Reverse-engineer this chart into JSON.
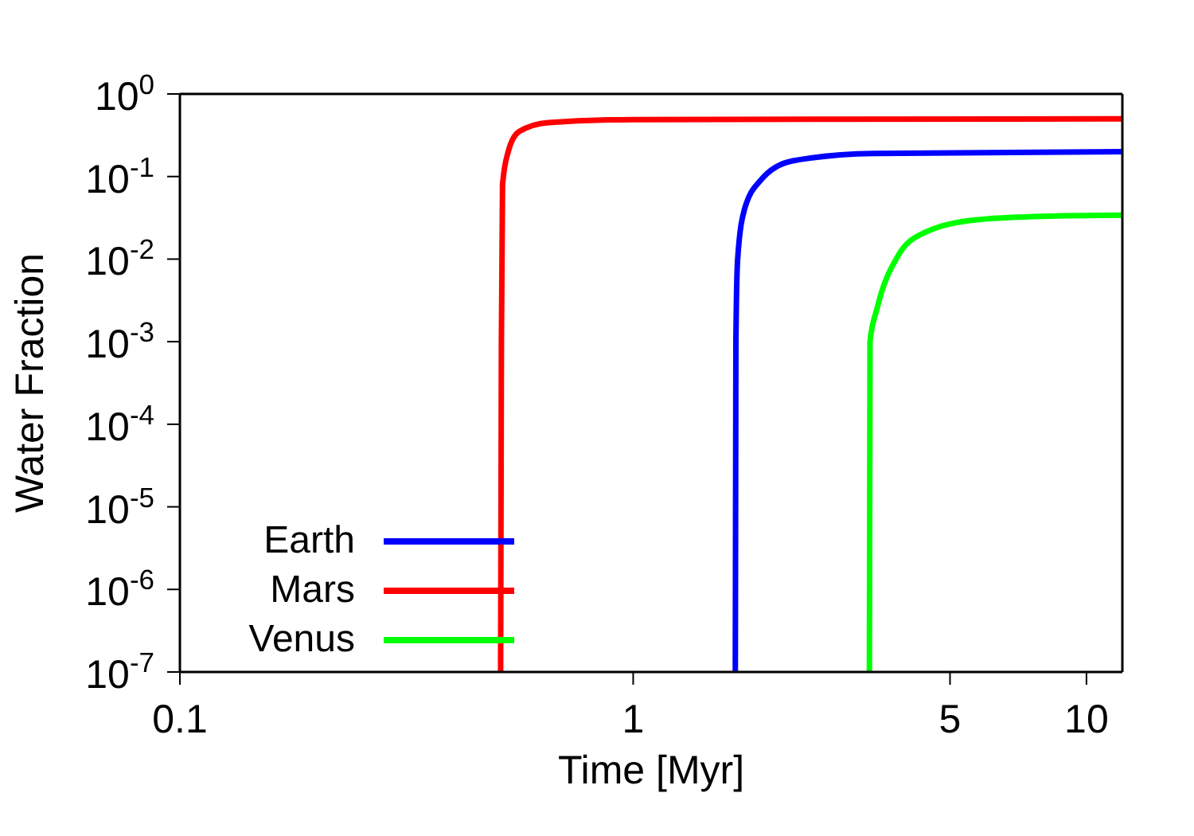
{
  "chart_data": {
    "type": "line",
    "xlabel": "Time [Myr]",
    "ylabel": "Water Fraction",
    "log": "xy",
    "xlim": [
      0.1,
      12
    ],
    "xticks": [
      0.1,
      1,
      5,
      10
    ],
    "ylim": [
      1e-07,
      1
    ],
    "yticks": [
      {
        "value": 1e-07,
        "label": "10$^{-7}$"
      },
      {
        "value": 1e-06,
        "label": "10$^{-6}$"
      },
      {
        "value": 1e-05,
        "label": "10$^{-5}$"
      },
      {
        "value": 0.0001,
        "label": "10$^{-4}$"
      },
      {
        "value": 0.001,
        "label": "10$^{-3}$"
      },
      {
        "value": 0.01,
        "label": "10$^{-2}$"
      },
      {
        "value": 0.1,
        "label": "10$^{-1}$"
      },
      {
        "value": 1,
        "label": "10$^{0}$"
      }
    ],
    "legend": "bottom left",
    "marker": "none",
    "line_style": "solid",
    "series": [
      {
        "name": "Earth",
        "color": "#0000ff",
        "x": [
          1.68,
          1.685,
          1.7,
          1.76,
          1.91,
          2.25,
          3.4,
          12
        ],
        "values": [
          1e-07,
          0.001,
          0.01,
          0.04,
          0.09,
          0.155,
          0.19,
          0.2
        ]
      },
      {
        "name": "Mars",
        "color": "#ff0000",
        "x": [
          0.51,
          0.512,
          0.515,
          0.53,
          0.56,
          0.65,
          1,
          12
        ],
        "values": [
          1e-07,
          0.001,
          0.08,
          0.2,
          0.35,
          0.45,
          0.49,
          0.5
        ]
      },
      {
        "name": "Venus",
        "color": "#00ff00",
        "x": [
          3.32,
          3.33,
          3.45,
          3.84,
          4.4,
          5.75,
          8,
          12
        ],
        "values": [
          1e-07,
          0.001,
          0.0025,
          0.011,
          0.021,
          0.03,
          0.033,
          0.034
        ]
      }
    ]
  }
}
